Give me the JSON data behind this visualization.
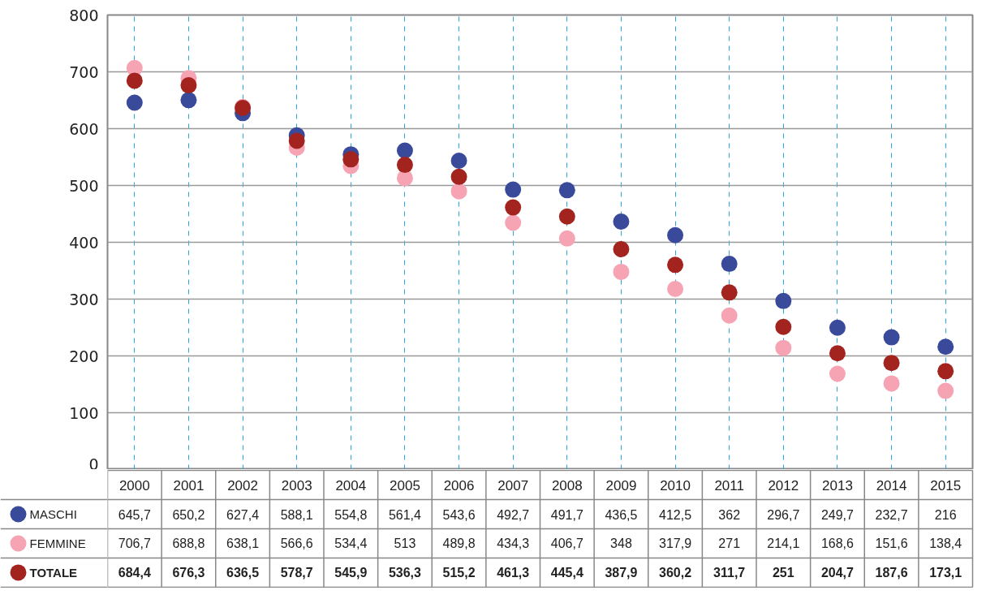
{
  "chart_data": {
    "type": "scatter",
    "categories": [
      "2000",
      "2001",
      "2002",
      "2003",
      "2004",
      "2005",
      "2006",
      "2007",
      "2008",
      "2009",
      "2010",
      "2011",
      "2012",
      "2013",
      "2014",
      "2015"
    ],
    "ylim": [
      0,
      800
    ],
    "yticks": [
      0,
      100,
      200,
      300,
      400,
      500,
      600,
      700,
      800
    ],
    "grid": true,
    "marker": "circle",
    "legend": "bottom",
    "series": [
      {
        "name": "MASCHI",
        "color": "#3a4a9a",
        "values": [
          645.7,
          650.2,
          627.4,
          588.1,
          554.8,
          561.4,
          543.6,
          492.7,
          491.7,
          436.5,
          412.5,
          362,
          296.7,
          249.7,
          232.7,
          216
        ],
        "value_labels": [
          "645,7",
          "650,2",
          "627,4",
          "588,1",
          "554,8",
          "561,4",
          "543,6",
          "492,7",
          "491,7",
          "436,5",
          "412,5",
          "362",
          "296,7",
          "249,7",
          "232,7",
          "216"
        ]
      },
      {
        "name": "FEMMINE",
        "color": "#f6a3b3",
        "values": [
          706.7,
          688.8,
          638.1,
          566.6,
          534.4,
          513,
          489.8,
          434.3,
          406.7,
          348,
          317.9,
          271,
          214.1,
          168.6,
          151.6,
          138.4
        ],
        "value_labels": [
          "706,7",
          "688,8",
          "638,1",
          "566,6",
          "534,4",
          "513",
          "489,8",
          "434,3",
          "406,7",
          "348",
          "317,9",
          "271",
          "214,1",
          "168,6",
          "151,6",
          "138,4"
        ]
      },
      {
        "name": "TOTALE",
        "color": "#a3231f",
        "values": [
          684.4,
          676.3,
          636.5,
          578.7,
          545.9,
          536.3,
          515.2,
          461.3,
          445.4,
          387.9,
          360.2,
          311.7,
          251,
          204.7,
          187.6,
          173.1
        ],
        "value_labels": [
          "684,4",
          "676,3",
          "636,5",
          "578,7",
          "545,9",
          "536,3",
          "515,2",
          "461,3",
          "445,4",
          "387,9",
          "360,2",
          "311,7",
          "251",
          "204,7",
          "187,6",
          "173,1"
        ]
      }
    ]
  }
}
